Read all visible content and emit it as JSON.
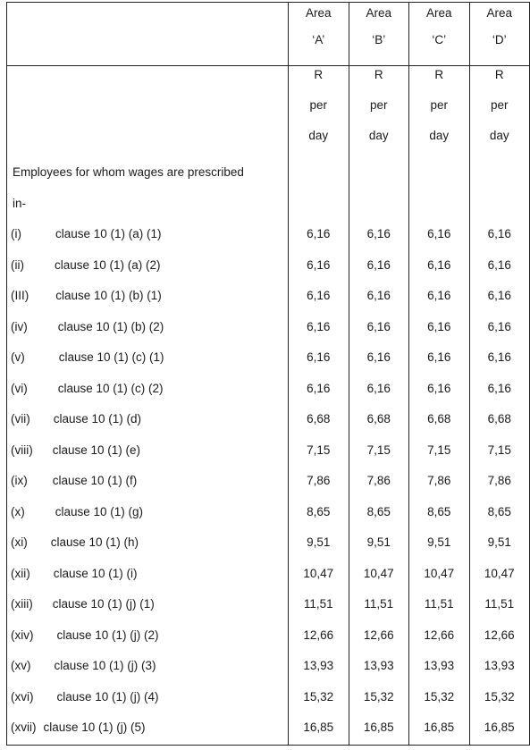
{
  "header": {
    "areas": [
      {
        "line1": "Area",
        "line2": "‘A’"
      },
      {
        "line1": "Area",
        "line2": "‘B’"
      },
      {
        "line1": "Area",
        "line2": "‘C’"
      },
      {
        "line1": "Area",
        "line2": "‘D’"
      }
    ]
  },
  "units": [
    {
      "l1": "R",
      "l2": "per",
      "l3": "day"
    },
    {
      "l1": "R",
      "l2": "per",
      "l3": "day"
    },
    {
      "l1": "R",
      "l2": "per",
      "l3": "day"
    },
    {
      "l1": "R",
      "l2": "per",
      "l3": "day"
    }
  ],
  "intro": {
    "line1": "Employees for whom wages are prescribed",
    "line2": "in-"
  },
  "rows": [
    {
      "num": "(i)",
      "clause": "clause 10 (1) (a) (1)",
      "values": [
        "6,16",
        "6,16",
        "6,16",
        "6,16"
      ]
    },
    {
      "num": "(ii)",
      "clause": "clause 10 (1) (a) (2)",
      "values": [
        "6,16",
        "6,16",
        "6,16",
        "6,16"
      ]
    },
    {
      "num": "(III)",
      "clause": "clause 10 (1) (b) (1)",
      "values": [
        "6,16",
        "6,16",
        "6,16",
        "6,16"
      ]
    },
    {
      "num": "(iv)",
      "clause": "clause 10 (1) (b) (2)",
      "values": [
        "6,16",
        "6,16",
        "6,16",
        "6,16"
      ]
    },
    {
      "num": "(v)",
      "clause": "clause 10 (1) (c) (1)",
      "values": [
        "6,16",
        "6,16",
        "6,16",
        "6,16"
      ]
    },
    {
      "num": "(vi)",
      "clause": "clause 10 (1) (c) (2)",
      "values": [
        "6,16",
        "6,16",
        "6,16",
        "6,16"
      ]
    },
    {
      "num": "(vii)",
      "clause": "clause 10 (1) (d)",
      "values": [
        "6,68",
        "6,68",
        "6,68",
        "6,68"
      ]
    },
    {
      "num": "(viii)",
      "clause": "clause 10 (1) (e)",
      "values": [
        "7,15",
        "7,15",
        "7,15",
        "7,15"
      ]
    },
    {
      "num": "(ix)",
      "clause": "clause 10 (1) (f)",
      "values": [
        "7,86",
        "7,86",
        "7,86",
        "7,86"
      ]
    },
    {
      "num": "(x)",
      "clause": "clause 10 (1) (g)",
      "values": [
        "8,65",
        "8,65",
        "8,65",
        "8,65"
      ]
    },
    {
      "num": "(xi)",
      "clause": "clause 10 (1) (h)",
      "values": [
        "9,51",
        "9,51",
        "9,51",
        "9,51"
      ]
    },
    {
      "num": "(xii)",
      "clause": "clause 10 (1) (i)",
      "values": [
        "10,47",
        "10,47",
        "10,47",
        "10,47"
      ]
    },
    {
      "num": "(xiii)",
      "clause": "clause 10 (1) (j) (1)",
      "values": [
        "11,51",
        "11,51",
        "11,51",
        "11,51"
      ]
    },
    {
      "num": "(xiv)",
      "clause": "clause 10 (1) (j) (2)",
      "values": [
        "12,66",
        "12,66",
        "12,66",
        "12,66"
      ]
    },
    {
      "num": "(xv)",
      "clause": "clause 10 (1) (j) (3)",
      "values": [
        "13,93",
        "13,93",
        "13,93",
        "13,93"
      ]
    },
    {
      "num": "(xvi)",
      "clause": "clause 10 (1) (j) (4)",
      "values": [
        "15,32",
        "15,32",
        "15,32",
        "15,32"
      ]
    },
    {
      "num": "(xvii)",
      "clause": "clause 10 (1) (j) (5)",
      "values": [
        "16,85",
        "16,85",
        "16,85",
        "16,85"
      ]
    }
  ]
}
